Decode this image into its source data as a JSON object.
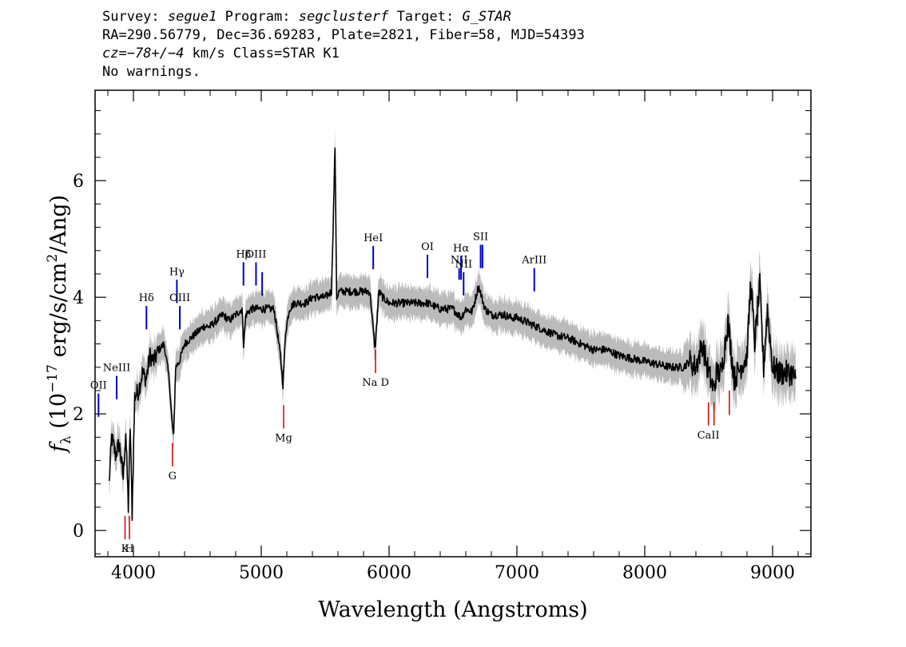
{
  "header": {
    "survey_label": "Survey:",
    "survey_value": "segue1",
    "program_label": "Program:",
    "program_value": "segclusterf",
    "target_label": "Target:",
    "target_value": "G_STAR",
    "coords_line": "RA=290.56779, Dec=36.69283, Plate=2821, Fiber=58, MJD=54393",
    "cz_label": "cz=",
    "cz_value": "−78+/−4",
    "cz_rest": " km/s Class=STAR K1",
    "warnings": "No warnings."
  },
  "chart_data": {
    "type": "line",
    "xlabel": "Wavelength (Angstroms)",
    "ylabel_main": "f",
    "ylabel_sub": "λ",
    "ylabel_units_a": " (10",
    "ylabel_exp": "−17",
    "ylabel_units_b": " erg/s/cm",
    "ylabel_exp2": "2",
    "ylabel_units_c": "/Ang)",
    "xlim": [
      3700,
      9300
    ],
    "ylim": [
      -0.45,
      7.55
    ],
    "x_ticks": [
      4000,
      5000,
      6000,
      7000,
      8000,
      9000
    ],
    "x_tick_labels": [
      "4000",
      "5000",
      "6000",
      "7000",
      "8000",
      "9000"
    ],
    "y_ticks": [
      0,
      2,
      4,
      6
    ],
    "y_tick_labels": [
      "0",
      "2",
      "4",
      "6"
    ],
    "grid": false,
    "colors": {
      "flux": "#000000",
      "error": "#bbbbbb",
      "emission": "#0000cc",
      "absorption": "#cc0000"
    },
    "series": [
      {
        "style": "flux",
        "x": [
          3810,
          3830,
          3860,
          3890,
          3920,
          3940,
          3960,
          3975,
          3990,
          4010,
          4040,
          4070,
          4100,
          4130,
          4160,
          4200,
          4240,
          4280,
          4300,
          4315,
          4330,
          4360,
          4400,
          4450,
          4500,
          4550,
          4600,
          4650,
          4700,
          4750,
          4800,
          4850,
          4861,
          4880,
          4920,
          4960,
          5000,
          5050,
          5100,
          5150,
          5170,
          5190,
          5220,
          5260,
          5300,
          5350,
          5400,
          5450,
          5500,
          5550,
          5577,
          5590,
          5610,
          5650,
          5700,
          5750,
          5800,
          5850,
          5890,
          5920,
          5950,
          6000,
          6050,
          6100,
          6150,
          6200,
          6250,
          6300,
          6350,
          6400,
          6450,
          6500,
          6563,
          6600,
          6650,
          6700,
          6750,
          6800,
          6850,
          6900,
          6950,
          7000,
          7050,
          7100,
          7150,
          7200,
          7300,
          7400,
          7500,
          7600,
          7700,
          7800,
          7900,
          8000,
          8100,
          8200,
          8300,
          8350,
          8400,
          8450,
          8500,
          8542,
          8560,
          8600,
          8650,
          8700,
          8750,
          8800,
          8830,
          8860,
          8900,
          8930,
          8960,
          9000,
          9050,
          9100,
          9150,
          9180
        ],
        "y": [
          0.8,
          1.6,
          1.3,
          1.5,
          0.9,
          1.7,
          0.4,
          1.8,
          0.3,
          2.3,
          2.4,
          2.7,
          2.6,
          3.0,
          2.9,
          3.1,
          3.2,
          2.6,
          1.9,
          1.6,
          2.8,
          2.9,
          3.2,
          3.3,
          3.4,
          3.5,
          3.5,
          3.6,
          3.7,
          3.6,
          3.7,
          3.8,
          3.2,
          3.7,
          3.8,
          3.8,
          3.8,
          3.8,
          3.8,
          3.0,
          2.5,
          3.4,
          3.8,
          3.9,
          3.9,
          3.9,
          4.0,
          4.0,
          4.0,
          4.1,
          6.6,
          4.0,
          4.1,
          4.1,
          4.1,
          4.1,
          4.1,
          4.1,
          3.1,
          4.1,
          4.0,
          3.9,
          3.9,
          3.9,
          3.9,
          3.9,
          3.9,
          3.9,
          3.85,
          3.8,
          3.8,
          3.8,
          3.65,
          3.8,
          3.75,
          4.2,
          3.8,
          3.7,
          3.7,
          3.7,
          3.65,
          3.65,
          3.6,
          3.55,
          3.5,
          3.45,
          3.35,
          3.3,
          3.2,
          3.1,
          3.1,
          3.0,
          2.95,
          2.9,
          2.85,
          2.8,
          2.8,
          2.9,
          2.8,
          3.2,
          2.7,
          2.4,
          2.7,
          2.7,
          3.6,
          2.6,
          2.8,
          3.0,
          4.3,
          3.2,
          4.2,
          2.8,
          3.8,
          2.8,
          2.7,
          2.7,
          2.7,
          2.6
        ]
      }
    ],
    "emission_lines": [
      {
        "label": "OII",
        "x": 3727,
        "y_bot": 1.95,
        "y_top": 2.35
      },
      {
        "label": "NeIII",
        "x": 3869,
        "y_bot": 2.25,
        "y_top": 2.65
      },
      {
        "label": "Hδ",
        "x": 4102,
        "y_bot": 3.45,
        "y_top": 3.85
      },
      {
        "label": "Hγ",
        "x": 4340,
        "y_bot": 3.9,
        "y_top": 4.3
      },
      {
        "label": "OIII",
        "x": 4363,
        "y_bot": 3.45,
        "y_top": 3.85
      },
      {
        "label": "Hβ",
        "x": 4861,
        "y_bot": 4.2,
        "y_top": 4.6
      },
      {
        "label": "OIII",
        "x": 4959,
        "y_bot": 4.2,
        "y_top": 4.6
      },
      {
        "label": "",
        "x": 5007,
        "y_bot": 4.03,
        "y_top": 4.43
      },
      {
        "label": "HeI",
        "x": 5876,
        "y_bot": 4.48,
        "y_top": 4.88
      },
      {
        "label": "OI",
        "x": 6300,
        "y_bot": 4.33,
        "y_top": 4.73
      },
      {
        "label": "NII",
        "x": 6548,
        "y_bot": 4.3,
        "y_top": 4.5
      },
      {
        "label": "Hα",
        "x": 6563,
        "y_bot": 4.3,
        "y_top": 4.7
      },
      {
        "label": "NII",
        "x": 6583,
        "y_bot": 4.03,
        "y_top": 4.43
      },
      {
        "label": "SII",
        "x": 6716,
        "y_bot": 4.5,
        "y_top": 4.9
      },
      {
        "label": "",
        "x": 6731,
        "y_bot": 4.5,
        "y_top": 4.9
      },
      {
        "label": "ArIII",
        "x": 7136,
        "y_bot": 4.1,
        "y_top": 4.5
      }
    ],
    "absorption_lines": [
      {
        "label": "K",
        "x": 3934,
        "y_top": 0.25,
        "y_bot": -0.15
      },
      {
        "label": "H",
        "x": 3969,
        "y_top": 0.25,
        "y_bot": -0.15
      },
      {
        "label": "G",
        "x": 4305,
        "y_top": 1.5,
        "y_bot": 1.1
      },
      {
        "label": "Mg",
        "x": 5175,
        "y_top": 2.15,
        "y_bot": 1.75
      },
      {
        "label": "Na D",
        "x": 5894,
        "y_top": 3.1,
        "y_bot": 2.7
      },
      {
        "label": "CaII",
        "x": 8498,
        "y_top": 2.2,
        "y_bot": 1.8
      },
      {
        "label": "",
        "x": 8542,
        "y_top": 2.2,
        "y_bot": 1.8
      },
      {
        "label": "",
        "x": 8662,
        "y_top": 2.4,
        "y_bot": 1.98
      }
    ]
  }
}
